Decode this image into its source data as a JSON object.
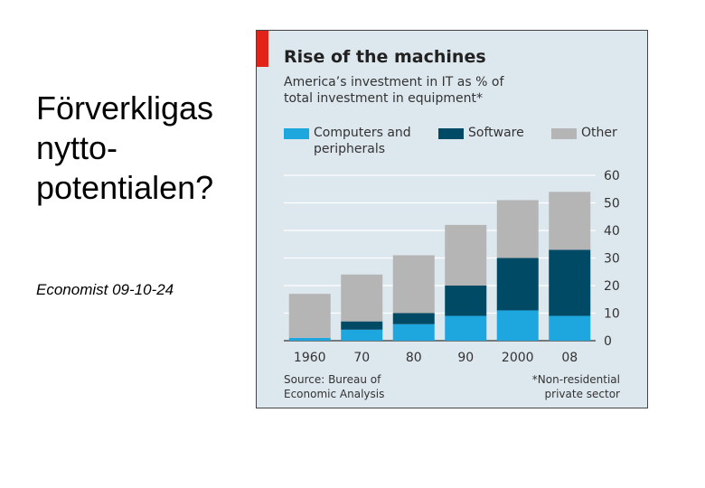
{
  "slide": {
    "title": "Förverkligas\nnytto-\npotentialen?",
    "citation": "Economist 09-10-24"
  },
  "colors": {
    "accent_red": "#e2231a",
    "computers": "#1ea6de",
    "software": "#004a66",
    "other": "#b5b5b5",
    "panel": "#dde7ee"
  },
  "chart_data": {
    "type": "bar",
    "stacked": true,
    "title": "Rise of the machines",
    "subtitle": "America’s investment in IT as % of\ntotal investment in equipment*",
    "categories": [
      "1960",
      "70",
      "80",
      "90",
      "2000",
      "08"
    ],
    "series": [
      {
        "name": "Computers and\nperipherals",
        "color_key": "computers",
        "values": [
          1,
          4,
          6,
          9,
          11,
          9
        ]
      },
      {
        "name": "Software",
        "color_key": "software",
        "values": [
          0,
          3,
          4,
          11,
          19,
          24
        ]
      },
      {
        "name": "Other",
        "color_key": "other",
        "values": [
          16,
          17,
          21,
          22,
          21,
          21
        ]
      }
    ],
    "ylim": [
      0,
      60
    ],
    "yticks": [
      "0",
      "10",
      "20",
      "30",
      "40",
      "50",
      "60"
    ],
    "grid": true,
    "y_axis_side": "right",
    "legend_position": "top",
    "source": "Source: Bureau of\nEconomic Analysis",
    "footnote": "*Non-residential\nprivate sector"
  }
}
